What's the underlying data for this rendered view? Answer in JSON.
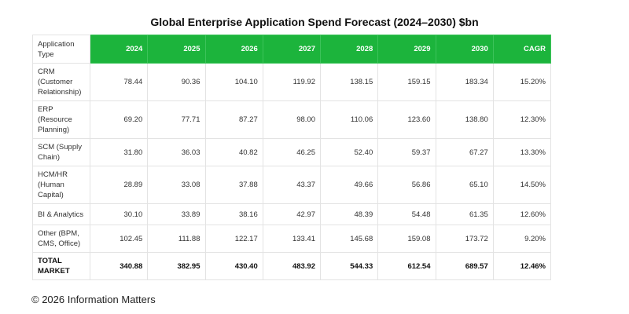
{
  "title": "Global Enterprise Application Spend Forecast (2024–2030) $bn",
  "footer": "© 2026 Information Matters",
  "colors": {
    "header_bg": "#1cb43c",
    "header_text": "#ffffff",
    "grid": "#e3e3e3"
  },
  "chart_data": {
    "type": "table",
    "title": "Global Enterprise Application Spend Forecast (2024–2030) $bn",
    "columns": [
      "Application Type",
      "2024",
      "2025",
      "2026",
      "2027",
      "2028",
      "2029",
      "2030",
      "CAGR"
    ],
    "rows": [
      [
        "CRM (Customer Relationship)",
        "78.44",
        "90.36",
        "104.10",
        "119.92",
        "138.15",
        "159.15",
        "183.34",
        "15.20%"
      ],
      [
        "ERP (Resource Planning)",
        "69.20",
        "77.71",
        "87.27",
        "98.00",
        "110.06",
        "123.60",
        "138.80",
        "12.30%"
      ],
      [
        "SCM (Supply Chain)",
        "31.80",
        "36.03",
        "40.82",
        "46.25",
        "52.40",
        "59.37",
        "67.27",
        "13.30%"
      ],
      [
        "HCM/HR (Human Capital)",
        "28.89",
        "33.08",
        "37.88",
        "43.37",
        "49.66",
        "56.86",
        "65.10",
        "14.50%"
      ],
      [
        "BI & Analytics",
        "30.10",
        "33.89",
        "38.16",
        "42.97",
        "48.39",
        "54.48",
        "61.35",
        "12.60%"
      ],
      [
        "Other (BPM, CMS, Office)",
        "102.45",
        "111.88",
        "122.17",
        "133.41",
        "145.68",
        "159.08",
        "173.72",
        "9.20%"
      ],
      [
        "TOTAL MARKET",
        "340.88",
        "382.95",
        "430.40",
        "483.92",
        "544.33",
        "612.54",
        "689.57",
        "12.46%"
      ]
    ]
  }
}
